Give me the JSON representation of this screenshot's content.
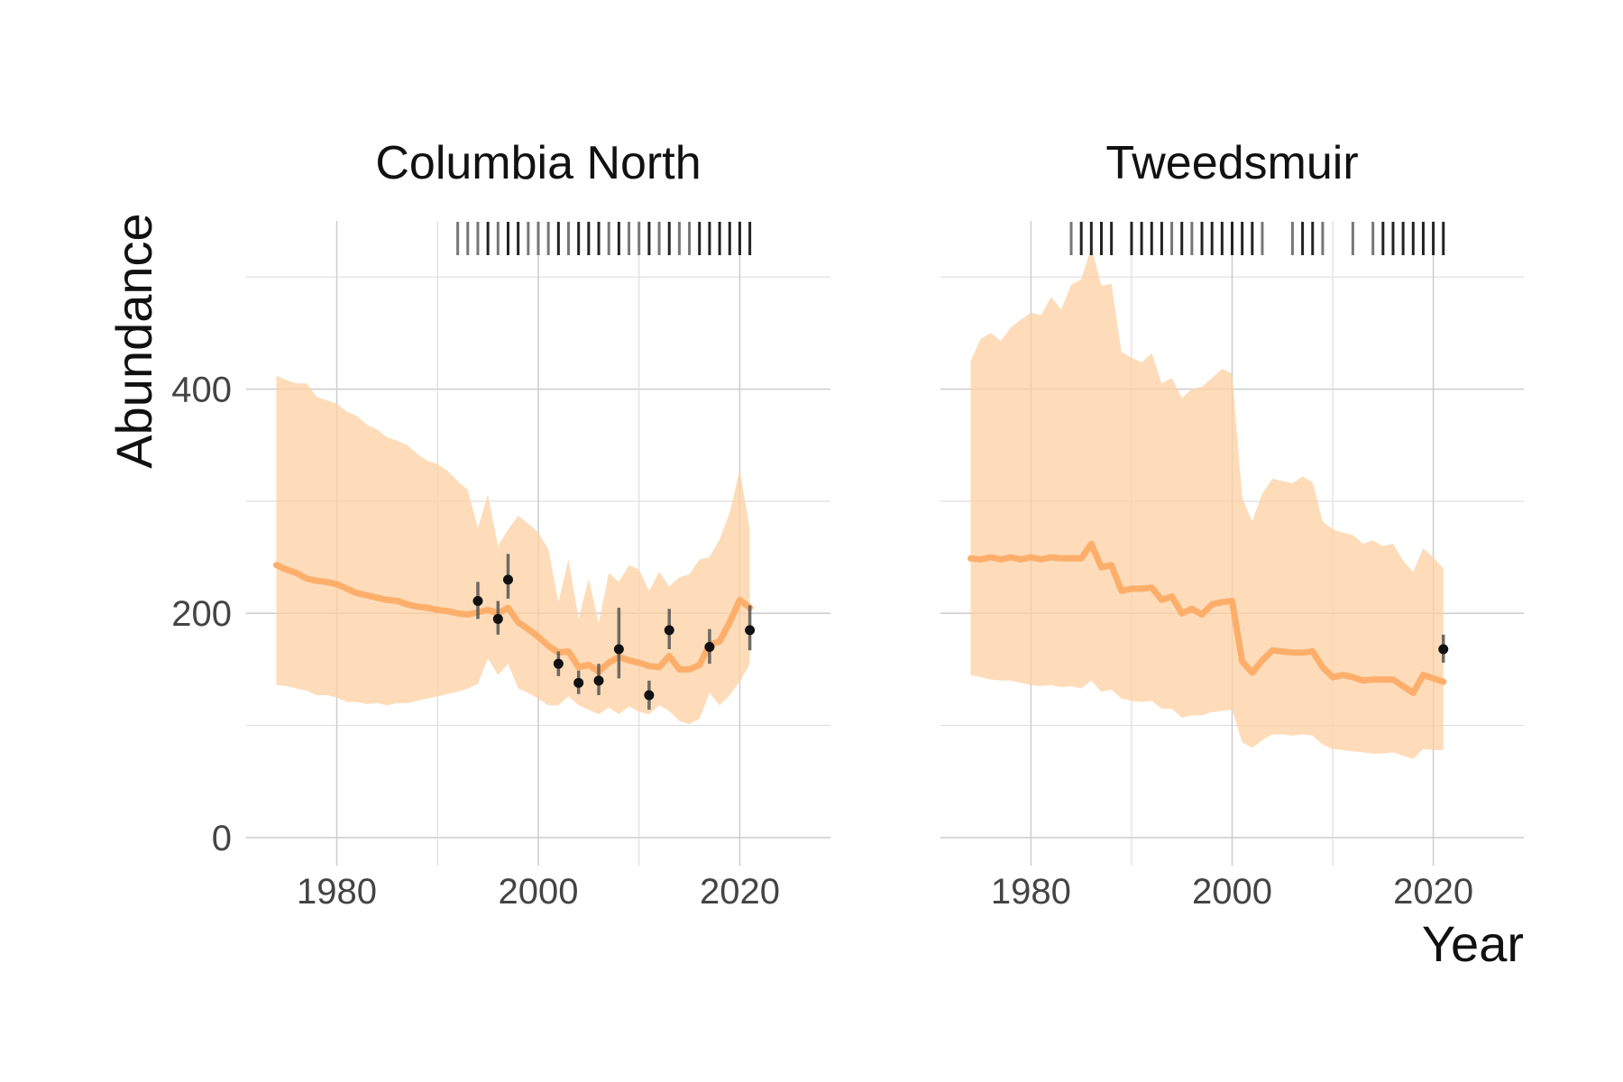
{
  "chart_data": {
    "type": "line",
    "xlabel": "Year",
    "ylabel": "Abundance",
    "x_ticks": [
      1980,
      2000,
      2020
    ],
    "y_ticks": [
      0,
      200,
      400
    ],
    "xlim": [
      1971,
      2029
    ],
    "ylim": [
      -25,
      550
    ],
    "colors": {
      "line": "#fdae6b",
      "ribbon": "#fdd0a2",
      "points": "#111111",
      "rug": "#444444"
    },
    "panels": [
      {
        "title": "Columbia North",
        "years": [
          1974,
          1975,
          1976,
          1977,
          1978,
          1979,
          1980,
          1981,
          1982,
          1983,
          1984,
          1985,
          1986,
          1987,
          1988,
          1989,
          1990,
          1991,
          1992,
          1993,
          1994,
          1995,
          1996,
          1997,
          1998,
          1999,
          2000,
          2001,
          2002,
          2003,
          2004,
          2005,
          2006,
          2007,
          2008,
          2009,
          2010,
          2011,
          2012,
          2013,
          2014,
          2015,
          2016,
          2017,
          2018,
          2019,
          2020,
          2021
        ],
        "estimate": [
          243,
          239,
          236,
          231,
          229,
          228,
          226,
          222,
          218,
          216,
          214,
          212,
          211,
          208,
          206,
          205,
          203,
          202,
          200,
          199,
          201,
          203,
          200,
          205,
          192,
          186,
          179,
          171,
          165,
          166,
          152,
          154,
          148,
          156,
          161,
          158,
          156,
          153,
          152,
          162,
          150,
          150,
          154,
          172,
          175,
          192,
          212,
          205
        ],
        "lower": [
          136,
          135,
          133,
          131,
          127,
          127,
          125,
          121,
          121,
          119,
          120,
          118,
          120,
          120,
          122,
          124,
          126,
          128,
          130,
          133,
          137,
          160,
          145,
          155,
          133,
          129,
          124,
          118,
          118,
          126,
          118,
          114,
          110,
          116,
          110,
          117,
          112,
          110,
          118,
          113,
          104,
          101,
          106,
          129,
          118,
          127,
          139,
          155
        ],
        "upper": [
          412,
          408,
          405,
          405,
          393,
          390,
          387,
          380,
          376,
          368,
          364,
          357,
          354,
          350,
          342,
          336,
          333,
          327,
          318,
          310,
          276,
          306,
          260,
          275,
          287,
          280,
          272,
          257,
          210,
          248,
          195,
          231,
          191,
          236,
          228,
          243,
          239,
          220,
          237,
          224,
          232,
          235,
          248,
          250,
          266,
          290,
          328,
          275
        ],
        "observed": [
          {
            "year": 1994,
            "value": 211,
            "lower": 195,
            "upper": 228
          },
          {
            "year": 1996,
            "value": 195,
            "lower": 181,
            "upper": 211
          },
          {
            "year": 1997,
            "value": 230,
            "lower": 213,
            "upper": 253
          },
          {
            "year": 2002,
            "value": 155,
            "lower": 144,
            "upper": 166
          },
          {
            "year": 2004,
            "value": 138,
            "lower": 128,
            "upper": 149
          },
          {
            "year": 2006,
            "value": 140,
            "lower": 127,
            "upper": 155
          },
          {
            "year": 2008,
            "value": 168,
            "lower": 142,
            "upper": 205
          },
          {
            "year": 2011,
            "value": 127,
            "lower": 114,
            "upper": 140
          },
          {
            "year": 2013,
            "value": 185,
            "lower": 168,
            "upper": 204
          },
          {
            "year": 2017,
            "value": 170,
            "lower": 155,
            "upper": 186
          },
          {
            "year": 2021,
            "value": 185,
            "lower": 167,
            "upper": 207
          }
        ],
        "rug": [
          {
            "year": 1992,
            "shade": "light"
          },
          {
            "year": 1993,
            "shade": "light"
          },
          {
            "year": 1994,
            "shade": "light"
          },
          {
            "year": 1995,
            "shade": "dark"
          },
          {
            "year": 1996,
            "shade": "light"
          },
          {
            "year": 1997,
            "shade": "dark"
          },
          {
            "year": 1998,
            "shade": "dark"
          },
          {
            "year": 1999,
            "shade": "light"
          },
          {
            "year": 2000,
            "shade": "light"
          },
          {
            "year": 2001,
            "shade": "light"
          },
          {
            "year": 2002,
            "shade": "dark"
          },
          {
            "year": 2003,
            "shade": "light"
          },
          {
            "year": 2004,
            "shade": "dark"
          },
          {
            "year": 2005,
            "shade": "dark"
          },
          {
            "year": 2006,
            "shade": "dark"
          },
          {
            "year": 2007,
            "shade": "light"
          },
          {
            "year": 2008,
            "shade": "dark"
          },
          {
            "year": 2009,
            "shade": "light"
          },
          {
            "year": 2010,
            "shade": "light"
          },
          {
            "year": 2011,
            "shade": "dark"
          },
          {
            "year": 2012,
            "shade": "light"
          },
          {
            "year": 2013,
            "shade": "dark"
          },
          {
            "year": 2014,
            "shade": "light"
          },
          {
            "year": 2015,
            "shade": "light"
          },
          {
            "year": 2016,
            "shade": "dark"
          },
          {
            "year": 2017,
            "shade": "dark"
          },
          {
            "year": 2018,
            "shade": "dark"
          },
          {
            "year": 2019,
            "shade": "dark"
          },
          {
            "year": 2020,
            "shade": "dark"
          },
          {
            "year": 2021,
            "shade": "dark"
          }
        ]
      },
      {
        "title": "Tweedsmuir",
        "years": [
          1974,
          1975,
          1976,
          1977,
          1978,
          1979,
          1980,
          1981,
          1982,
          1983,
          1984,
          1985,
          1986,
          1987,
          1988,
          1989,
          1990,
          1991,
          1992,
          1993,
          1994,
          1995,
          1996,
          1997,
          1998,
          1999,
          2000,
          2001,
          2002,
          2003,
          2004,
          2005,
          2006,
          2007,
          2008,
          2009,
          2010,
          2011,
          2012,
          2013,
          2014,
          2015,
          2016,
          2017,
          2018,
          2019,
          2020,
          2021
        ],
        "estimate": [
          249,
          248,
          250,
          248,
          250,
          248,
          250,
          248,
          250,
          249,
          249,
          249,
          262,
          241,
          243,
          220,
          222,
          222,
          223,
          212,
          215,
          200,
          204,
          199,
          208,
          210,
          211,
          157,
          147,
          158,
          167,
          166,
          165,
          165,
          166,
          152,
          143,
          145,
          143,
          140,
          141,
          141,
          141,
          135,
          129,
          145,
          142,
          139
        ],
        "lower": [
          145,
          143,
          141,
          140,
          140,
          138,
          136,
          135,
          136,
          134,
          135,
          133,
          140,
          130,
          132,
          124,
          122,
          121,
          122,
          115,
          115,
          107,
          109,
          109,
          112,
          113,
          114,
          85,
          80,
          87,
          92,
          92,
          91,
          92,
          91,
          83,
          79,
          78,
          77,
          76,
          75,
          75,
          76,
          73,
          70,
          79,
          78,
          78
        ],
        "upper": [
          425,
          445,
          450,
          443,
          455,
          462,
          468,
          466,
          482,
          471,
          493,
          498,
          527,
          492,
          494,
          433,
          428,
          424,
          432,
          405,
          410,
          392,
          400,
          402,
          410,
          418,
          414,
          303,
          282,
          307,
          320,
          318,
          316,
          322,
          317,
          282,
          275,
          272,
          270,
          262,
          265,
          260,
          262,
          247,
          237,
          258,
          250,
          240
        ],
        "observed": [
          {
            "year": 2021,
            "value": 168,
            "lower": 156,
            "upper": 181
          }
        ],
        "rug": [
          {
            "year": 1984,
            "shade": "light"
          },
          {
            "year": 1985,
            "shade": "dark"
          },
          {
            "year": 1986,
            "shade": "dark"
          },
          {
            "year": 1987,
            "shade": "dark"
          },
          {
            "year": 1988,
            "shade": "dark"
          },
          {
            "year": 1990,
            "shade": "dark"
          },
          {
            "year": 1991,
            "shade": "dark"
          },
          {
            "year": 1992,
            "shade": "dark"
          },
          {
            "year": 1993,
            "shade": "dark"
          },
          {
            "year": 1994,
            "shade": "light"
          },
          {
            "year": 1995,
            "shade": "dark"
          },
          {
            "year": 1996,
            "shade": "light"
          },
          {
            "year": 1997,
            "shade": "dark"
          },
          {
            "year": 1998,
            "shade": "dark"
          },
          {
            "year": 1999,
            "shade": "dark"
          },
          {
            "year": 2000,
            "shade": "dark"
          },
          {
            "year": 2001,
            "shade": "dark"
          },
          {
            "year": 2002,
            "shade": "dark"
          },
          {
            "year": 2003,
            "shade": "light"
          },
          {
            "year": 2006,
            "shade": "light"
          },
          {
            "year": 2007,
            "shade": "dark"
          },
          {
            "year": 2008,
            "shade": "dark"
          },
          {
            "year": 2009,
            "shade": "light"
          },
          {
            "year": 2012,
            "shade": "light"
          },
          {
            "year": 2014,
            "shade": "light"
          },
          {
            "year": 2015,
            "shade": "dark"
          },
          {
            "year": 2016,
            "shade": "dark"
          },
          {
            "year": 2017,
            "shade": "dark"
          },
          {
            "year": 2018,
            "shade": "dark"
          },
          {
            "year": 2019,
            "shade": "dark"
          },
          {
            "year": 2020,
            "shade": "dark"
          },
          {
            "year": 2021,
            "shade": "dark"
          }
        ]
      }
    ]
  }
}
